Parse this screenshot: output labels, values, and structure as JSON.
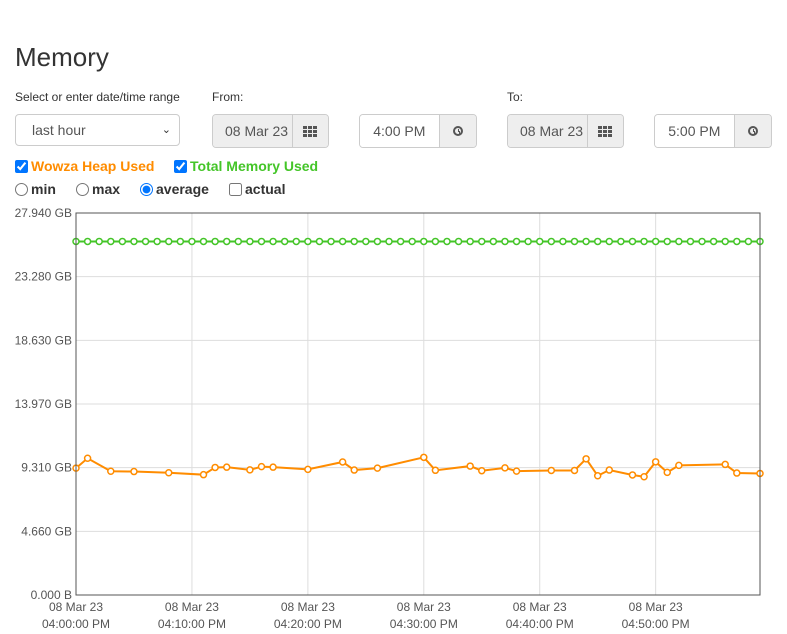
{
  "page": {
    "title": "Memory"
  },
  "range": {
    "label": "Select or enter date/time range",
    "selected": "last hour",
    "from_label": "From:",
    "to_label": "To:",
    "from_date": "08 Mar 23",
    "from_time": "4:00 PM",
    "to_date": "08 Mar 23",
    "to_time": "5:00 PM"
  },
  "series_toggles": {
    "heap": {
      "label": "Wowza Heap Used",
      "checked": true,
      "color": "#ff8c00"
    },
    "total": {
      "label": "Total Memory Used",
      "checked": true,
      "color": "#44c528"
    }
  },
  "aggregation": {
    "options": [
      "min",
      "max",
      "average",
      "actual"
    ],
    "selected": "average"
  },
  "chart_data": {
    "type": "line",
    "ylim": [
      0,
      27.94
    ],
    "y_ticks": [
      "27.940 GB",
      "23.280 GB",
      "18.630 GB",
      "13.970 GB",
      "9.310 GB",
      "4.660 GB",
      "0.000 B"
    ],
    "x_tick_lines": [
      [
        "08 Mar 23",
        "04:00:00 PM"
      ],
      [
        "08 Mar 23",
        "04:10:00 PM"
      ],
      [
        "08 Mar 23",
        "04:20:00 PM"
      ],
      [
        "08 Mar 23",
        "04:30:00 PM"
      ],
      [
        "08 Mar 23",
        "04:40:00 PM"
      ],
      [
        "08 Mar 23",
        "04:50:00 PM"
      ]
    ],
    "x_ticks_minutes": [
      0,
      10,
      20,
      30,
      40,
      50
    ],
    "xlim_minutes": [
      0,
      59
    ],
    "grid": true,
    "series": [
      {
        "name": "Total Memory Used",
        "color": "#44c528",
        "x": [
          0,
          1,
          2,
          3,
          4,
          5,
          6,
          7,
          8,
          9,
          10,
          11,
          12,
          13,
          14,
          15,
          16,
          17,
          18,
          19,
          20,
          21,
          22,
          23,
          24,
          25,
          26,
          27,
          28,
          29,
          30,
          31,
          32,
          33,
          34,
          35,
          36,
          37,
          38,
          39,
          40,
          41,
          42,
          43,
          44,
          45,
          46,
          47,
          48,
          49,
          50,
          51,
          52,
          53,
          54,
          55,
          56,
          57,
          58,
          59
        ],
        "values": [
          25.86,
          25.86,
          25.86,
          25.86,
          25.86,
          25.86,
          25.86,
          25.86,
          25.86,
          25.86,
          25.86,
          25.86,
          25.86,
          25.86,
          25.86,
          25.86,
          25.86,
          25.86,
          25.86,
          25.86,
          25.86,
          25.86,
          25.86,
          25.86,
          25.86,
          25.86,
          25.86,
          25.86,
          25.86,
          25.86,
          25.86,
          25.86,
          25.86,
          25.86,
          25.86,
          25.86,
          25.86,
          25.86,
          25.86,
          25.86,
          25.86,
          25.86,
          25.86,
          25.86,
          25.86,
          25.86,
          25.86,
          25.86,
          25.86,
          25.86,
          25.86,
          25.86,
          25.86,
          25.86,
          25.86,
          25.86,
          25.86,
          25.86,
          25.86,
          25.86
        ]
      },
      {
        "name": "Wowza Heap Used",
        "color": "#ff8c00",
        "x": [
          0,
          1,
          3,
          5,
          8,
          11,
          12,
          13,
          15,
          16,
          17,
          20,
          23,
          24,
          26,
          30,
          31,
          34,
          35,
          37,
          38,
          41,
          43,
          44,
          45,
          46,
          48,
          49,
          50,
          51,
          52,
          56,
          57,
          59
        ],
        "values": [
          9.28,
          10.0,
          9.05,
          9.03,
          8.94,
          8.8,
          9.33,
          9.35,
          9.15,
          9.39,
          9.35,
          9.19,
          9.73,
          9.14,
          9.28,
          10.07,
          9.12,
          9.43,
          9.09,
          9.3,
          9.06,
          9.11,
          9.11,
          9.96,
          8.72,
          9.14,
          8.78,
          8.65,
          9.74,
          8.97,
          9.48,
          9.55,
          8.92,
          8.89
        ]
      }
    ]
  }
}
